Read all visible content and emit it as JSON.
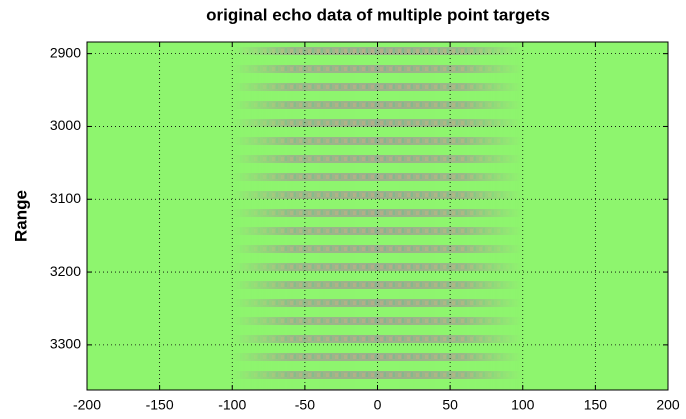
{
  "chart_data": {
    "type": "image",
    "title": "original echo data of multiple point targets",
    "y_label": "Range",
    "background_color": "#8ef56e",
    "xlim": [
      -200,
      200
    ],
    "xticks": [
      -200,
      -150,
      -100,
      -50,
      0,
      50,
      100,
      150,
      200
    ],
    "ylim": [
      2884,
      3362
    ],
    "yticks": [
      2900,
      3000,
      3100,
      3200,
      3300
    ],
    "y_reversed": true,
    "grid": true
  }
}
